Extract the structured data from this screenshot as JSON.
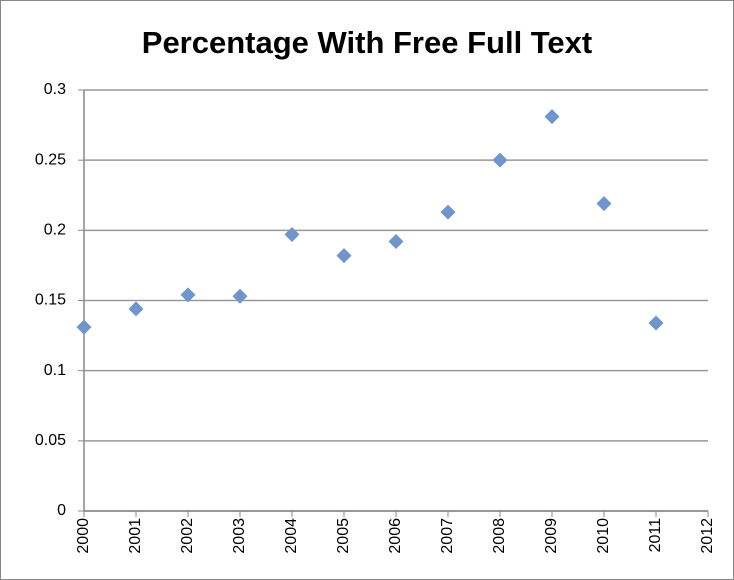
{
  "chart_data": {
    "type": "scatter",
    "title": "Percentage With Free Full Text",
    "x": [
      2000,
      2001,
      2002,
      2003,
      2004,
      2005,
      2006,
      2007,
      2008,
      2009,
      2010,
      2011
    ],
    "values": [
      0.131,
      0.144,
      0.154,
      0.153,
      0.197,
      0.182,
      0.192,
      0.213,
      0.25,
      0.281,
      0.219,
      0.134
    ],
    "color": "#7094cc",
    "marker": "diamond",
    "xlim": [
      2000,
      2012
    ],
    "xticks": [
      2000,
      2001,
      2002,
      2003,
      2004,
      2005,
      2006,
      2007,
      2008,
      2009,
      2010,
      2011,
      2012
    ],
    "ylim": [
      0,
      0.3
    ],
    "yticks": [
      0,
      0.05,
      0.1,
      0.15,
      0.2,
      0.25,
      0.3
    ],
    "grid": true
  }
}
